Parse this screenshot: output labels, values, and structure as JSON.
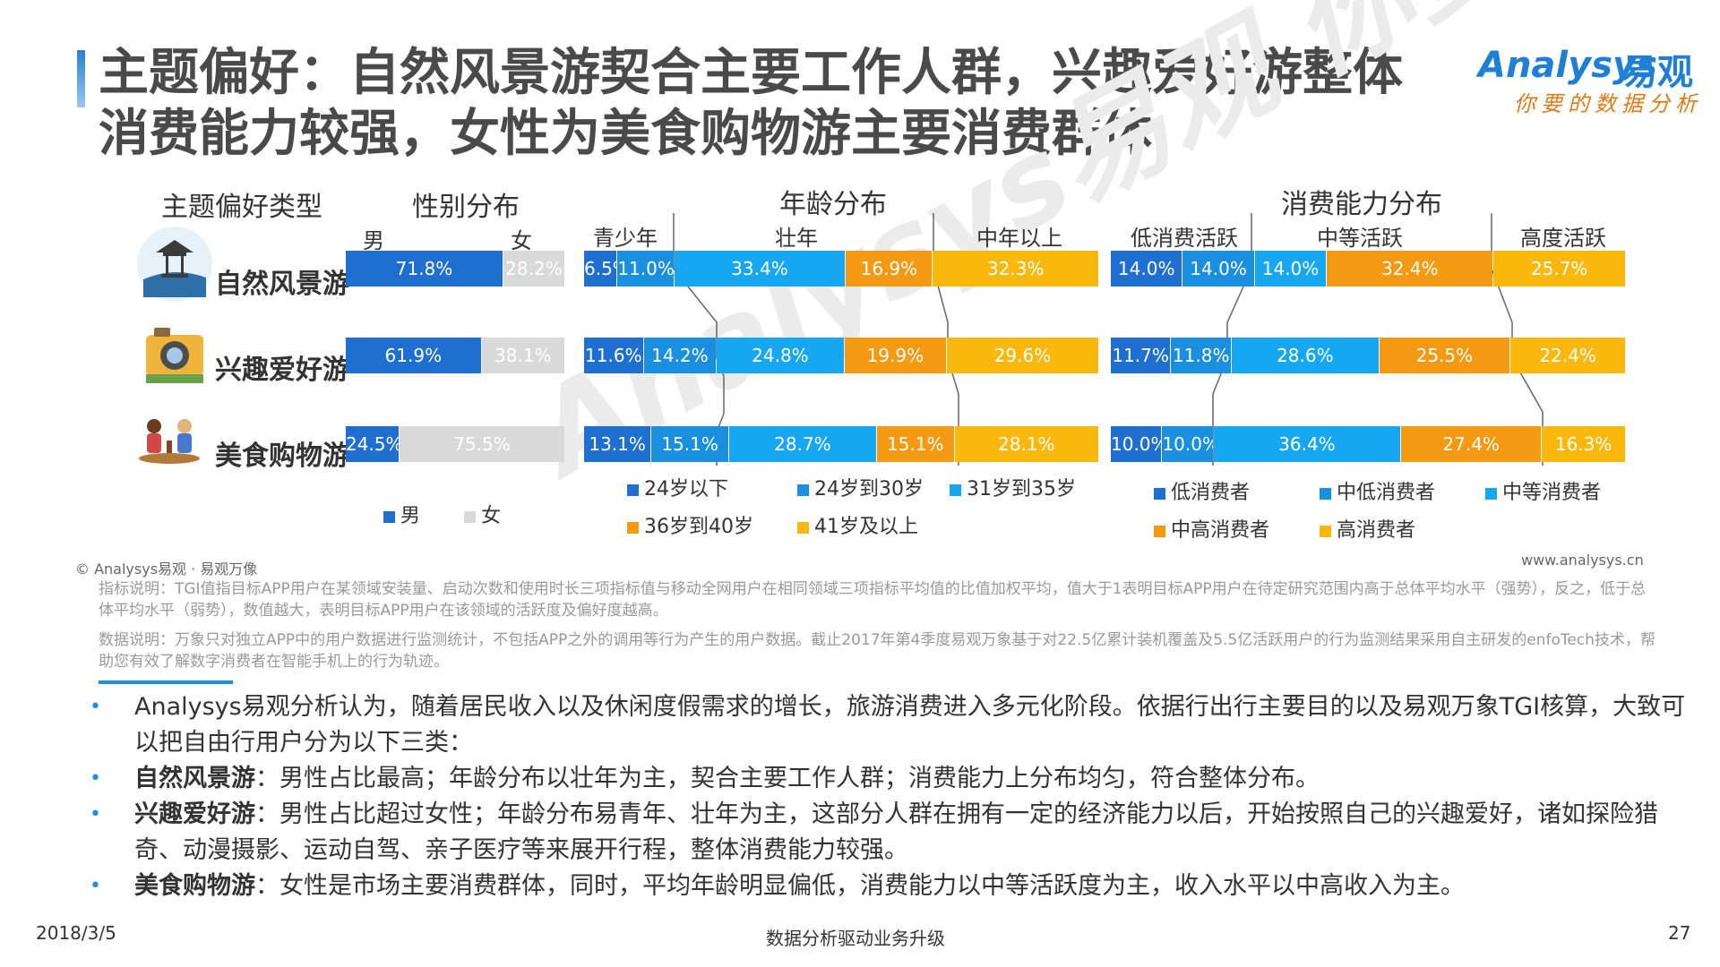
{
  "title": {
    "line1": "主题偏好：自然风景游契合主要工作人群，兴趣爱好游整体",
    "line2": "消费能力较强，女性为美食购物游主要消费群体"
  },
  "logo": {
    "en": "Analysys",
    "cn": "易观",
    "slogan": "你要的数据分析"
  },
  "watermark": "Analysys易观 你要的数据分析",
  "headers": {
    "type": "主题偏好类型",
    "gender": "性别分布",
    "age": "年龄分布",
    "consume": "消费能力分布"
  },
  "sub_headers": {
    "male": "男",
    "female": "女",
    "age_groups": [
      "青少年",
      "壮年",
      "中年以上"
    ],
    "consume_groups": [
      "低消费活跃",
      "中等活跃",
      "高度活跃"
    ]
  },
  "colors": {
    "gender": [
      "#1f6fd0",
      "#d9d9d9"
    ],
    "age": [
      "#1f6fd0",
      "#1a8fe0",
      "#17a7f0",
      "#f39a12",
      "#fbb80c"
    ],
    "consume": [
      "#1f6fd0",
      "#1a8fe0",
      "#17a7f0",
      "#f39a12",
      "#fbb80c"
    ]
  },
  "chart_data": [
    {
      "type": "bar",
      "stacked": true,
      "orientation": "horizontal",
      "title": "性别分布",
      "categories": [
        "自然风景游",
        "兴趣爱好游",
        "美食购物游"
      ],
      "series": [
        {
          "name": "男",
          "values": [
            71.8,
            61.9,
            24.5
          ],
          "labels": [
            "71.8%",
            "61.9%",
            "24.5%"
          ]
        },
        {
          "name": "女",
          "values": [
            28.2,
            38.1,
            75.5
          ],
          "labels": [
            "28.2%",
            "38.1%",
            "75.5%"
          ]
        }
      ],
      "legend": [
        "男",
        "女"
      ]
    },
    {
      "type": "bar",
      "stacked": true,
      "orientation": "horizontal",
      "title": "年龄分布",
      "categories": [
        "自然风景游",
        "兴趣爱好游",
        "美食购物游"
      ],
      "series": [
        {
          "name": "24岁以下",
          "values": [
            6.5,
            11.6,
            13.1
          ],
          "labels": [
            "6.5%",
            "11.6%",
            "13.1%"
          ]
        },
        {
          "name": "24岁到30岁",
          "values": [
            11.0,
            14.2,
            15.1
          ],
          "labels": [
            "11.0%",
            "14.2%",
            "15.1%"
          ]
        },
        {
          "name": "31岁到35岁",
          "values": [
            33.4,
            24.8,
            28.7
          ],
          "labels": [
            "33.4%",
            "24.8%",
            "28.7%"
          ]
        },
        {
          "name": "36岁到40岁",
          "values": [
            16.9,
            19.9,
            15.1
          ],
          "labels": [
            "16.9%",
            "19.9%",
            "15.1%"
          ]
        },
        {
          "name": "41岁及以上",
          "values": [
            32.3,
            29.6,
            28.1
          ],
          "labels": [
            "32.3%",
            "29.6%",
            "28.1%"
          ]
        }
      ],
      "legend": [
        "24岁以下",
        "24岁到30岁",
        "31岁到35岁",
        "36岁到40岁",
        "41岁及以上"
      ]
    },
    {
      "type": "bar",
      "stacked": true,
      "orientation": "horizontal",
      "title": "消费能力分布",
      "categories": [
        "自然风景游",
        "兴趣爱好游",
        "美食购物游"
      ],
      "series": [
        {
          "name": "低消费者",
          "values": [
            14.0,
            11.7,
            10.0
          ],
          "labels": [
            "14.0%",
            "11.7%",
            "10.0%"
          ]
        },
        {
          "name": "中低消费者",
          "values": [
            14.0,
            11.8,
            10.0
          ],
          "labels": [
            "14.0%",
            "11.8%",
            "10.0%"
          ]
        },
        {
          "name": "中等消费者",
          "values": [
            14.0,
            28.6,
            36.4
          ],
          "labels": [
            "14.0%",
            "28.6%",
            "36.4%"
          ]
        },
        {
          "name": "中高消费者",
          "values": [
            32.4,
            25.5,
            27.4
          ],
          "labels": [
            "32.4%",
            "25.5%",
            "27.4%"
          ]
        },
        {
          "name": "高消费者",
          "values": [
            25.7,
            22.4,
            16.3
          ],
          "labels": [
            "25.7%",
            "22.4%",
            "16.3%"
          ]
        }
      ],
      "legend": [
        "低消费者",
        "中低消费者",
        "中等消费者",
        "中高消费者",
        "高消费者"
      ]
    }
  ],
  "row_icons": [
    "pavilion-icon",
    "camera-icon",
    "dining-people-icon"
  ],
  "source_left": "© Analysys易观 · 易观万像",
  "source_right": "www.analysys.cn",
  "notes": [
    "指标说明：TGI值指目标APP用户在某领域安装量、启动次数和使用时长三项指标值与移动全网用户在相同领域三项指标平均值的比值加权平均，值大于1表明目标APP用户在待定研究范围内高于总体平均水平（强势），反之，低于总体平均水平（弱势），数值越大，表明目标APP用户在该领域的活跃度及偏好度越高。",
    "数据说明：万象只对独立APP中的用户数据进行监测统计，不包括APP之外的调用等行为产生的用户数据。截止2017年第4季度易观万象基于对22.5亿累计装机覆盖及5.5亿活跃用户的行为监测结果采用自主研发的enfoTech技术，帮助您有效了解数字消费者在智能手机上的行为轨迹。"
  ],
  "bullets": [
    {
      "bold": "",
      "text": "Analysys易观分析认为，随着居民收入以及休闲度假需求的增长，旅游消费进入多元化阶段。依据行出行主要目的以及易观万象TGI核算，大致可以把自由行用户分为以下三类："
    },
    {
      "bold": "自然风景游",
      "text": "：男性占比最高；年龄分布以壮年为主，契合主要工作人群；消费能力上分布均匀，符合整体分布。"
    },
    {
      "bold": "兴趣爱好游",
      "text": "：男性占比超过女性；年龄分布易青年、壮年为主，这部分人群在拥有一定的经济能力以后，开始按照自己的兴趣爱好，诸如探险猎奇、动漫摄影、运动自驾、亲子医疗等来展开行程，整体消费能力较强。"
    },
    {
      "bold": "美食购物游",
      "text": "：女性是市场主要消费群体，同时，平均年龄明显偏低，消费能力以中等活跃度为主，收入水平以中高收入为主。"
    }
  ],
  "footer": {
    "date": "2018/3/5",
    "center": "数据分析驱动业务升级",
    "page": "27"
  }
}
